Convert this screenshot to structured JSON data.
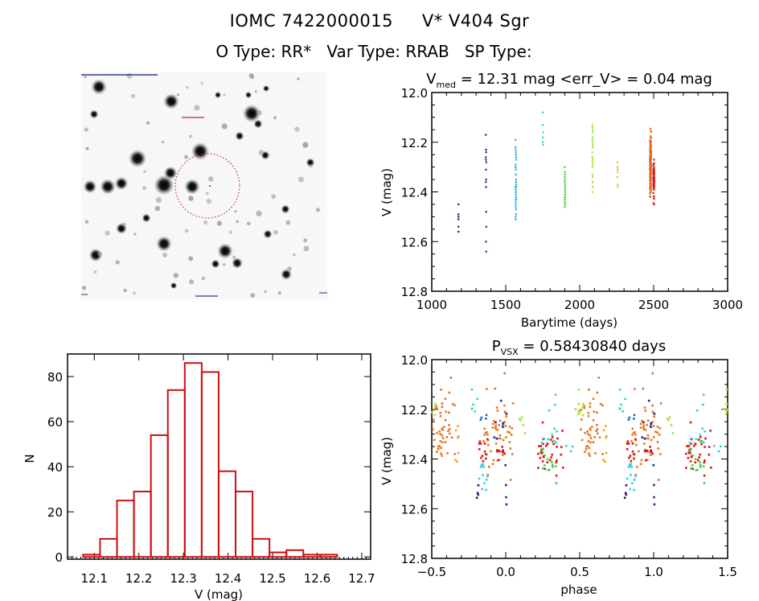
{
  "header": {
    "object_id": "IOMC 7422000015",
    "star_name": "V* V404 Sgr",
    "o_type_label": "O Type:",
    "o_type": "RR*",
    "var_type_label": "Var Type:",
    "var_type": "RRAB",
    "sp_type_label": "SP Type:",
    "sp_type": ""
  },
  "image_panel": {
    "description": "Sky finder image (inverted greyscale) centered on target, red dotted aperture circle",
    "aperture_color": "#c00000",
    "label_color": "#0000aa"
  },
  "chart_data": [
    {
      "type": "scatter",
      "name": "light-curve",
      "title": "V_med = 12.31 mag <err_V> = 0.04 mag",
      "title_parts": {
        "v": "V",
        "sub": "med",
        "rest": " = 12.31 mag <err_V> = 0.04 mag"
      },
      "xlabel": "Barytime (days)",
      "ylabel": "V (mag)",
      "xlim": [
        1000,
        3000
      ],
      "ylim": [
        12.8,
        12.0
      ],
      "y_inverted": true,
      "xticks": [
        1000,
        1500,
        2000,
        2500,
        3000
      ],
      "xtick_labels": [
        "1000",
        "1500",
        "2000",
        "2500",
        "3000"
      ],
      "yticks": [
        12.0,
        12.2,
        12.4,
        12.6,
        12.8
      ],
      "ytick_labels": [
        "12.0",
        "12.2",
        "12.4",
        "12.6",
        "12.8"
      ],
      "grid": false,
      "series": [
        {
          "name": "season-1",
          "color": "#3a1270",
          "x": [
            1180,
            1180,
            1180,
            1180,
            1180,
            1180
          ],
          "y": [
            12.45,
            12.49,
            12.5,
            12.54,
            12.56,
            12.51
          ]
        },
        {
          "name": "season-2",
          "color": "#1a2a9a",
          "x": [
            1365,
            1366,
            1367,
            1365,
            1368,
            1366,
            1367,
            1365,
            1366,
            1367,
            1368,
            1366,
            1367,
            1365
          ],
          "y": [
            12.17,
            12.23,
            12.24,
            12.26,
            12.28,
            12.31,
            12.35,
            12.36,
            12.38,
            12.48,
            12.54,
            12.6,
            12.64,
            12.27
          ]
        },
        {
          "name": "season-3",
          "color": "#2aa8e0",
          "x": [
            1565,
            1566,
            1567,
            1568,
            1569,
            1570,
            1566,
            1567,
            1568,
            1569,
            1570,
            1565,
            1566,
            1567,
            1568,
            1569,
            1570,
            1566,
            1567,
            1568,
            1569,
            1570,
            1566,
            1567,
            1568,
            1569,
            1570,
            1566,
            1568,
            1570
          ],
          "y": [
            12.19,
            12.22,
            12.23,
            12.24,
            12.25,
            12.27,
            12.29,
            12.31,
            12.33,
            12.36,
            12.37,
            12.38,
            12.39,
            12.4,
            12.41,
            12.42,
            12.43,
            12.44,
            12.45,
            12.46,
            12.47,
            12.49,
            12.5,
            12.51,
            12.4,
            12.35,
            12.26,
            12.3,
            12.43,
            12.38
          ]
        },
        {
          "name": "season-4",
          "color": "#30d8a8",
          "x": [
            1750,
            1751,
            1752,
            1750,
            1751,
            1752
          ],
          "y": [
            12.08,
            12.13,
            12.16,
            12.18,
            12.2,
            12.21
          ]
        },
        {
          "name": "season-5",
          "color": "#40d040",
          "x": [
            1898,
            1899,
            1900,
            1901,
            1898,
            1899,
            1900,
            1901,
            1898,
            1899,
            1900,
            1901,
            1898,
            1899,
            1900,
            1901,
            1899,
            1900
          ],
          "y": [
            12.3,
            12.32,
            12.33,
            12.35,
            12.36,
            12.38,
            12.4,
            12.41,
            12.42,
            12.43,
            12.44,
            12.45,
            12.46,
            12.44,
            12.42,
            12.39,
            12.34,
            12.37
          ]
        },
        {
          "name": "season-6",
          "color": "#a0e030",
          "x": [
            2085,
            2086,
            2087,
            2088,
            2085,
            2086,
            2087,
            2088,
            2085,
            2086,
            2087,
            2088,
            2085,
            2086,
            2087,
            2088,
            2086,
            2087,
            2085,
            2086
          ],
          "y": [
            12.13,
            12.14,
            12.15,
            12.18,
            12.19,
            12.2,
            12.21,
            12.22,
            12.26,
            12.27,
            12.28,
            12.29,
            12.3,
            12.33,
            12.36,
            12.38,
            12.4,
            12.16,
            12.24,
            12.34
          ]
        },
        {
          "name": "season-7",
          "color": "#e0c030",
          "x": [
            2255,
            2256,
            2257,
            2255,
            2256,
            2257,
            2256
          ],
          "y": [
            12.28,
            12.3,
            12.32,
            12.34,
            12.37,
            12.38,
            12.31
          ]
        },
        {
          "name": "season-8",
          "color": "#e8641c",
          "cluster": {
            "x_center": 2478,
            "x_spread": 8,
            "y_min": 12.12,
            "y_max": 12.42,
            "y_mean": 12.29,
            "count": 160
          }
        },
        {
          "name": "season-9",
          "color": "#e01010",
          "cluster": {
            "x_center": 2500,
            "x_spread": 6,
            "y_min": 12.27,
            "y_max": 12.45,
            "y_mean": 12.35,
            "count": 70
          }
        }
      ]
    },
    {
      "type": "bar",
      "name": "magnitude-histogram",
      "title": "",
      "xlabel": "V (mag)",
      "ylabel": "N",
      "xlim": [
        12.04,
        12.72
      ],
      "ylim": [
        -1,
        90
      ],
      "xticks": [
        12.1,
        12.2,
        12.3,
        12.4,
        12.5,
        12.6,
        12.7
      ],
      "xtick_labels": [
        "12.1",
        "12.2",
        "12.3",
        "12.4",
        "12.5",
        "12.6",
        "12.7"
      ],
      "yticks": [
        0,
        20,
        40,
        60,
        80
      ],
      "ytick_labels": [
        "0",
        "20",
        "40",
        "60",
        "80"
      ],
      "bin_edges": [
        12.075,
        12.113,
        12.151,
        12.189,
        12.227,
        12.265,
        12.303,
        12.341,
        12.379,
        12.417,
        12.455,
        12.493,
        12.531,
        12.569,
        12.607,
        12.645
      ],
      "values": [
        1,
        8,
        25,
        29,
        54,
        74,
        86,
        82,
        38,
        29,
        8,
        2,
        3,
        1,
        1
      ],
      "bar_color": "#cc1010",
      "grid": false
    },
    {
      "type": "scatter",
      "name": "phase-curve",
      "title": "P_vsx = 0.58430840 days",
      "title_parts": {
        "v": "P",
        "sub": "VSX",
        "rest": " = 0.58430840 days"
      },
      "xlabel": "phase",
      "ylabel": "V (mag)",
      "xlim": [
        -0.5,
        1.5
      ],
      "ylim": [
        12.8,
        12.0
      ],
      "y_inverted": true,
      "xticks": [
        -0.5,
        0.0,
        0.5,
        1.0,
        1.5
      ],
      "xtick_labels": [
        "−0.5",
        "0.0",
        "0.5",
        "1.0",
        "1.5"
      ],
      "yticks": [
        12.0,
        12.2,
        12.4,
        12.6,
        12.8
      ],
      "ytick_labels": [
        "12.0",
        "12.2",
        "12.4",
        "12.6",
        "12.8"
      ],
      "period_days": 0.5843084,
      "grid": false,
      "note": "Same photometry folded on period; each point plotted at phase and phase+1",
      "groups": [
        {
          "name": "orange-1",
          "color": "#e8741c",
          "phase_center": -0.42,
          "phase_spread": 0.08,
          "y_mean": 12.27,
          "y_spread": 0.07,
          "count": 45
        },
        {
          "name": "orange-2",
          "color": "#e8741c",
          "phase_center": -0.05,
          "phase_spread": 0.1,
          "y_mean": 12.27,
          "y_spread": 0.09,
          "count": 55
        },
        {
          "name": "red-1",
          "color": "#d81818",
          "phase_center": -0.15,
          "phase_spread": 0.03,
          "y_mean": 12.36,
          "y_spread": 0.03,
          "count": 12
        },
        {
          "name": "red-2",
          "color": "#d81818",
          "phase_center": -0.03,
          "phase_spread": 0.03,
          "y_mean": 12.37,
          "y_spread": 0.02,
          "count": 10
        },
        {
          "name": "red-3",
          "color": "#d81818",
          "phase_center": 0.3,
          "phase_spread": 0.09,
          "y_mean": 12.37,
          "y_spread": 0.04,
          "count": 35
        },
        {
          "name": "cyan",
          "color": "#30d0e0",
          "phase_center": -0.15,
          "phase_spread": 0.03,
          "y_mean": 12.43,
          "y_spread": 0.04,
          "count": 12
        },
        {
          "name": "cyan-2",
          "color": "#30d0e0",
          "phase_center": 0.35,
          "phase_spread": 0.12,
          "y_mean": 12.33,
          "y_spread": 0.07,
          "count": 14
        },
        {
          "name": "teal",
          "color": "#30d8a8",
          "phase_center": -0.21,
          "phase_spread": 0.02,
          "y_mean": 12.15,
          "y_spread": 0.05,
          "count": 6
        },
        {
          "name": "green",
          "color": "#40d040",
          "phase_center": 0.29,
          "phase_spread": 0.06,
          "y_mean": 12.4,
          "y_spread": 0.05,
          "count": 14
        },
        {
          "name": "lime",
          "color": "#a8e030",
          "phase_center": 0.5,
          "phase_spread": 0.03,
          "y_mean": 12.17,
          "y_spread": 0.04,
          "count": 10
        },
        {
          "name": "lime-2",
          "color": "#a8e030",
          "phase_center": 0.11,
          "phase_spread": 0.02,
          "y_mean": 12.27,
          "y_spread": 0.02,
          "count": 5
        },
        {
          "name": "yellow",
          "color": "#f0a020",
          "phase_center": -0.33,
          "phase_spread": 0.03,
          "y_mean": 12.33,
          "y_spread": 0.04,
          "count": 7
        },
        {
          "name": "blue",
          "color": "#1a2a9a",
          "phase_center": -0.04,
          "phase_spread": 0.05,
          "y_mean": 12.25,
          "y_spread": 0.04,
          "count": 8
        },
        {
          "name": "blue-faint",
          "color": "#1a2a9a",
          "phase_center": 0.0,
          "phase_spread": 0.005,
          "y_mean": 12.56,
          "y_spread": 0.07,
          "count": 4
        },
        {
          "name": "purple",
          "color": "#3a1270",
          "phase_center": -0.19,
          "phase_spread": 0.01,
          "y_mean": 12.52,
          "y_spread": 0.04,
          "count": 4
        },
        {
          "name": "blue-mid",
          "color": "#1a6ad0",
          "phase_center": -0.15,
          "phase_spread": 0.02,
          "y_mean": 12.23,
          "y_spread": 0.02,
          "count": 4
        }
      ]
    }
  ]
}
